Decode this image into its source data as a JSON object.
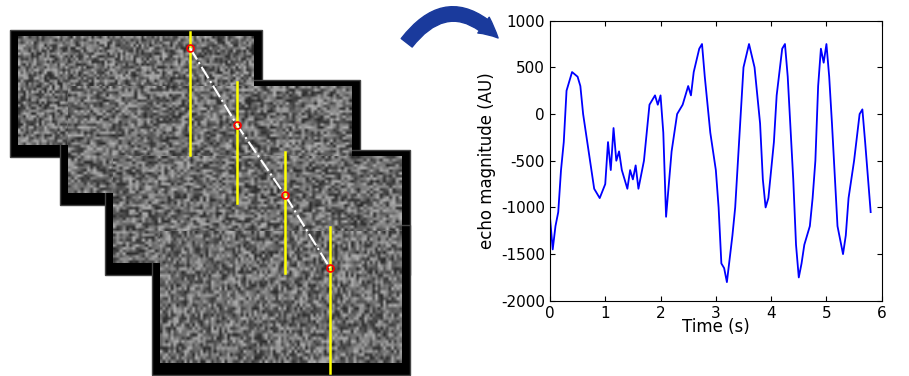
{
  "chart_data": {
    "type": "line",
    "x_label": "Time (s)",
    "y_label": "echo magnitude (AU)",
    "x": [
      0,
      0.05,
      0.1,
      0.15,
      0.2,
      0.25,
      0.3,
      0.4,
      0.5,
      0.55,
      0.6,
      0.7,
      0.8,
      0.9,
      1.0,
      1.05,
      1.1,
      1.15,
      1.2,
      1.25,
      1.3,
      1.4,
      1.45,
      1.5,
      1.55,
      1.6,
      1.7,
      1.8,
      1.9,
      1.95,
      2.0,
      2.05,
      2.1,
      2.2,
      2.3,
      2.4,
      2.5,
      2.55,
      2.6,
      2.7,
      2.75,
      2.8,
      2.9,
      3.0,
      3.05,
      3.1,
      3.15,
      3.2,
      3.3,
      3.35,
      3.4,
      3.45,
      3.5,
      3.6,
      3.7,
      3.8,
      3.85,
      3.9,
      3.95,
      4.0,
      4.05,
      4.1,
      4.2,
      4.25,
      4.3,
      4.4,
      4.45,
      4.5,
      4.55,
      4.6,
      4.7,
      4.75,
      4.8,
      4.85,
      4.9,
      4.95,
      5.0,
      5.05,
      5.1,
      5.2,
      5.3,
      5.35,
      5.4,
      5.5,
      5.6,
      5.65,
      5.7,
      5.8
    ],
    "values": [
      -1100,
      -1450,
      -1200,
      -1050,
      -600,
      -300,
      250,
      450,
      400,
      300,
      0,
      -400,
      -800,
      -900,
      -750,
      -300,
      -600,
      -150,
      -500,
      -400,
      -600,
      -800,
      -600,
      -700,
      -550,
      -800,
      -500,
      100,
      200,
      100,
      200,
      -200,
      -1100,
      -400,
      0,
      100,
      300,
      200,
      450,
      700,
      750,
      400,
      -200,
      -600,
      -1000,
      -1600,
      -1650,
      -1800,
      -1300,
      -1000,
      -500,
      0,
      500,
      750,
      500,
      -100,
      -700,
      -1000,
      -900,
      -600,
      -300,
      200,
      700,
      750,
      400,
      -700,
      -1400,
      -1750,
      -1600,
      -1400,
      -1200,
      -900,
      -500,
      300,
      700,
      550,
      750,
      400,
      -100,
      -1200,
      -1500,
      -1300,
      -900,
      -500,
      0,
      50,
      -300,
      -1050
    ],
    "color": "#0000ff",
    "xlim": [
      0,
      6
    ],
    "xticks": [
      0,
      1,
      2,
      3,
      4,
      5,
      6
    ],
    "ylim": [
      -2000,
      1000
    ],
    "yticks": [
      -2000,
      -1500,
      -1000,
      -500,
      0,
      500,
      1000
    ],
    "grid": false
  }
}
